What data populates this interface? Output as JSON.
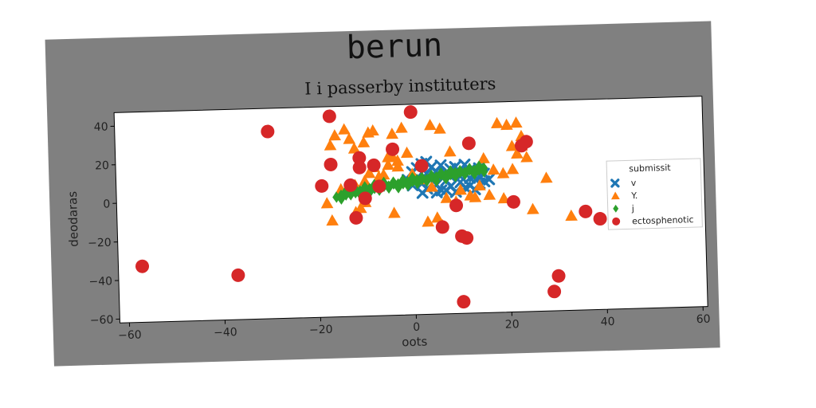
{
  "chart_data": {
    "type": "scatter",
    "title": "berun",
    "subtitle": "I i passerby instituters",
    "xlabel": "oots",
    "ylabel": "deodaras",
    "xlim": [
      -62,
      61
    ],
    "ylim": [
      -62,
      47
    ],
    "xticks": [
      -60,
      -40,
      -20,
      0,
      20,
      40,
      60
    ],
    "yticks": [
      -60,
      -40,
      -20,
      0,
      20,
      40
    ],
    "grid": false,
    "legend": {
      "title": "submissit",
      "placement": "right"
    },
    "series": [
      {
        "name": "v",
        "marker": "x",
        "color": "#1f77b4",
        "points": [
          [
            0,
            12
          ],
          [
            1,
            14
          ],
          [
            2,
            16
          ],
          [
            3,
            17
          ],
          [
            4,
            14
          ],
          [
            5,
            12
          ],
          [
            6,
            15
          ],
          [
            7,
            11
          ],
          [
            8,
            13
          ],
          [
            9,
            14
          ],
          [
            10,
            11
          ],
          [
            11,
            15
          ],
          [
            12,
            12
          ],
          [
            13,
            9
          ],
          [
            14,
            13
          ],
          [
            15,
            10
          ],
          [
            2,
            6
          ],
          [
            3,
            3
          ],
          [
            4,
            8
          ],
          [
            5,
            5
          ],
          [
            6,
            2
          ],
          [
            7,
            7
          ],
          [
            8,
            4
          ],
          [
            9,
            1
          ],
          [
            10,
            6
          ],
          [
            11,
            3
          ],
          [
            12,
            8
          ],
          [
            13,
            2
          ],
          [
            14,
            5
          ],
          [
            1,
            9
          ],
          [
            0,
            5
          ],
          [
            -1,
            8
          ],
          [
            3,
            11
          ],
          [
            6,
            9
          ],
          [
            10,
            9
          ],
          [
            12,
            4
          ],
          [
            15,
            6
          ],
          [
            5,
            1
          ],
          [
            8,
            9
          ],
          [
            2,
            1
          ],
          [
            7,
            2
          ],
          [
            14,
            9
          ],
          [
            16,
            7
          ]
        ]
      },
      {
        "name": "Y.",
        "marker": "triangle",
        "color": "#ff7f0e",
        "points": [
          [
            -16,
            32
          ],
          [
            -13,
            30
          ],
          [
            -14,
            35
          ],
          [
            -17,
            27
          ],
          [
            -12,
            25
          ],
          [
            -10,
            28
          ],
          [
            -9,
            33
          ],
          [
            -8,
            34
          ],
          [
            -4,
            32
          ],
          [
            -2,
            35
          ],
          [
            -3,
            18
          ],
          [
            -4,
            20
          ],
          [
            -5,
            16
          ],
          [
            -8,
            15
          ],
          [
            -9,
            12
          ],
          [
            -6,
            11
          ],
          [
            -10,
            8
          ],
          [
            -12,
            6
          ],
          [
            -15,
            4
          ],
          [
            -18,
            -3
          ],
          [
            -17,
            -12
          ],
          [
            -11,
            -6
          ],
          [
            -12,
            -8
          ],
          [
            -10,
            -3
          ],
          [
            -4,
            -9
          ],
          [
            3,
            -14
          ],
          [
            5,
            -12
          ],
          [
            6,
            -16
          ],
          [
            4,
            36
          ],
          [
            6,
            34
          ],
          [
            18,
            36
          ],
          [
            20,
            35
          ],
          [
            22,
            36
          ],
          [
            23,
            29
          ],
          [
            21,
            24
          ],
          [
            23,
            24
          ],
          [
            22,
            20
          ],
          [
            24,
            18
          ],
          [
            16,
            -1
          ],
          [
            19,
            -3
          ],
          [
            25,
            -9
          ],
          [
            28,
            7
          ],
          [
            33,
            -13
          ],
          [
            -7,
            10
          ],
          [
            -3,
            15
          ],
          [
            0,
            11
          ],
          [
            2,
            8
          ],
          [
            4,
            4
          ],
          [
            7,
            -2
          ],
          [
            9,
            -4
          ],
          [
            12,
            -1
          ],
          [
            14,
            4
          ],
          [
            10,
            2
          ],
          [
            13,
            -2
          ],
          [
            -1,
            22
          ],
          [
            -5,
            20
          ],
          [
            8,
            22
          ],
          [
            15,
            18
          ],
          [
            17,
            12
          ],
          [
            19,
            10
          ],
          [
            21,
            12
          ]
        ]
      },
      {
        "name": "j",
        "marker": "diamond",
        "color": "#2ca02c",
        "points": [
          [
            -16,
            0
          ],
          [
            -15,
            1
          ],
          [
            -14,
            1
          ],
          [
            -13,
            2
          ],
          [
            -12,
            2
          ],
          [
            -11,
            3
          ],
          [
            -10,
            3
          ],
          [
            -9,
            4
          ],
          [
            -8,
            4
          ],
          [
            -7,
            5
          ],
          [
            -6,
            5
          ],
          [
            -5,
            5
          ],
          [
            -4,
            6
          ],
          [
            -3,
            6
          ],
          [
            -2,
            6
          ],
          [
            -1,
            7
          ],
          [
            0,
            7
          ],
          [
            1,
            8
          ],
          [
            2,
            8
          ],
          [
            3,
            8
          ],
          [
            4,
            9
          ],
          [
            5,
            9
          ],
          [
            6,
            10
          ],
          [
            7,
            10
          ],
          [
            8,
            10
          ],
          [
            9,
            11
          ],
          [
            10,
            11
          ],
          [
            11,
            11
          ],
          [
            12,
            12
          ],
          [
            13,
            12
          ],
          [
            14,
            12
          ],
          [
            15,
            13
          ],
          [
            -15,
            -1
          ],
          [
            -13,
            1
          ],
          [
            -11,
            1
          ],
          [
            -9,
            2
          ],
          [
            -7,
            3
          ],
          [
            -5,
            4
          ],
          [
            -3,
            4
          ],
          [
            -1,
            5
          ],
          [
            1,
            6
          ],
          [
            3,
            7
          ],
          [
            5,
            7
          ],
          [
            7,
            8
          ],
          [
            9,
            9
          ],
          [
            11,
            10
          ],
          [
            13,
            10
          ],
          [
            15,
            11
          ],
          [
            -14,
            3
          ],
          [
            -12,
            4
          ],
          [
            -10,
            5
          ],
          [
            -8,
            6
          ],
          [
            -6,
            7
          ],
          [
            -4,
            7
          ],
          [
            -2,
            8
          ],
          [
            0,
            9
          ],
          [
            2,
            9
          ],
          [
            4,
            10
          ],
          [
            6,
            11
          ],
          [
            8,
            12
          ],
          [
            10,
            12
          ],
          [
            12,
            13
          ],
          [
            14,
            14
          ]
        ]
      },
      {
        "name": "ectosphenotic",
        "marker": "circle",
        "color": "#d62728",
        "points": [
          [
            -57,
            -33
          ],
          [
            -37,
            -39
          ],
          [
            -30,
            35
          ],
          [
            -17,
            42
          ],
          [
            -17,
            17
          ],
          [
            -11,
            20
          ],
          [
            -11,
            15
          ],
          [
            -8,
            16
          ],
          [
            -4,
            24
          ],
          [
            -19,
            6
          ],
          [
            -13,
            6
          ],
          [
            -10,
            -1
          ],
          [
            -7,
            5
          ],
          [
            -12,
            -11
          ],
          [
            0,
            43
          ],
          [
            2,
            15
          ],
          [
            6,
            -17
          ],
          [
            10,
            -22
          ],
          [
            11,
            -23
          ],
          [
            9,
            -6
          ],
          [
            12,
            26
          ],
          [
            21,
            -5
          ],
          [
            23,
            24
          ],
          [
            24,
            26
          ],
          [
            30,
            -44
          ],
          [
            29,
            -52
          ],
          [
            36,
            -11
          ],
          [
            39,
            -15
          ],
          [
            10,
            -56
          ]
        ]
      }
    ]
  }
}
